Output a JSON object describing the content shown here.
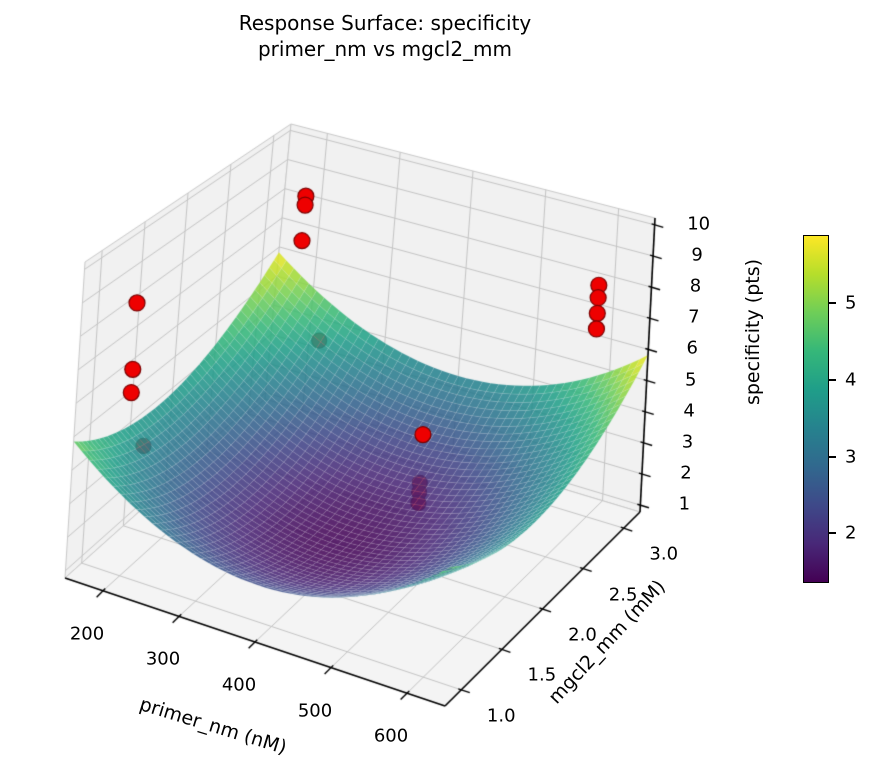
{
  "title": {
    "line1": "Response Surface: specificity",
    "line2": "primer_nm vs mgcl2_mm"
  },
  "chart_data": {
    "type": "surface3d",
    "title": "Response Surface: specificity\nprimer_nm vs mgcl2_mm",
    "xlabel": "primer_nm (nM)",
    "ylabel": "mgcl2_mm (mM)",
    "zlabel": "specificity (pts)",
    "xlim": [
      150,
      650
    ],
    "ylim": [
      0.8,
      3.2
    ],
    "zlim": [
      0.78,
      10.22
    ],
    "xticks": [
      "200",
      "300",
      "400",
      "500",
      "600"
    ],
    "xtick_values": [
      200,
      300,
      400,
      500,
      600
    ],
    "yticks": [
      "1.0",
      "1.5",
      "2.0",
      "2.5",
      "3.0"
    ],
    "ytick_values": [
      1.0,
      1.5,
      2.0,
      2.5,
      3.0
    ],
    "zticks": [
      "1",
      "2",
      "3",
      "4",
      "5",
      "6",
      "7",
      "8",
      "9",
      "10"
    ],
    "ztick_values": [
      1,
      2,
      3,
      4,
      5,
      6,
      7,
      8,
      9,
      10
    ],
    "grid": true,
    "surface": {
      "colormap": "viridis",
      "model": "z = zmin + A*(u-u0)^2 + Bv*(v-v0)^2  (u,v normalized over xlim/ylim)",
      "zmin": 1.4,
      "u0": 0.5,
      "v0": 0.42,
      "A": 9.6,
      "Bv": 6.0,
      "alpha": 0.87,
      "mesh_steps": 46
    },
    "colorbar": {
      "vmin": 1.35,
      "vmax": 5.89,
      "ticks": [
        "2",
        "3",
        "4",
        "5"
      ],
      "tick_values": [
        2,
        3,
        4,
        5
      ],
      "position": "right"
    },
    "points": [
      {
        "primer_nm": 200,
        "mgcl2_mm": 3.0,
        "specificity": 8.5,
        "occluded": false
      },
      {
        "primer_nm": 200,
        "mgcl2_mm": 3.0,
        "specificity": 8.2,
        "occluded": false
      },
      {
        "primer_nm": 200,
        "mgcl2_mm": 3.0,
        "specificity": 7.0,
        "occluded": false
      },
      {
        "primer_nm": 200,
        "mgcl2_mm": 1.0,
        "specificity": 9.0,
        "occluded": false
      },
      {
        "primer_nm": 200,
        "mgcl2_mm": 1.0,
        "specificity": 7.0,
        "occluded": false
      },
      {
        "primer_nm": 200,
        "mgcl2_mm": 1.0,
        "specificity": 6.3,
        "occluded": false
      },
      {
        "primer_nm": 600,
        "mgcl2_mm": 3.0,
        "specificity": 8.2,
        "occluded": false
      },
      {
        "primer_nm": 600,
        "mgcl2_mm": 3.0,
        "specificity": 7.8,
        "occluded": false
      },
      {
        "primer_nm": 600,
        "mgcl2_mm": 3.0,
        "specificity": 7.3,
        "occluded": false
      },
      {
        "primer_nm": 600,
        "mgcl2_mm": 3.0,
        "specificity": 6.8,
        "occluded": false
      },
      {
        "primer_nm": 420,
        "mgcl2_mm": 2.6,
        "specificity": 3.1,
        "occluded": false
      },
      {
        "primer_nm": 420,
        "mgcl2_mm": 2.6,
        "specificity": 1.55,
        "occluded": true
      },
      {
        "primer_nm": 420,
        "mgcl2_mm": 2.6,
        "specificity": 1.25,
        "occluded": true
      },
      {
        "primer_nm": 420,
        "mgcl2_mm": 2.6,
        "specificity": 0.9,
        "occluded": true
      },
      {
        "primer_nm": 275,
        "mgcl2_mm": 2.6,
        "specificity": 5.1,
        "occluded": true
      },
      {
        "primer_nm": 215,
        "mgcl2_mm": 1.05,
        "specificity": 4.7,
        "occluded": true
      }
    ],
    "point_color": "#ee0000",
    "point_edge_color": "#7a0000"
  },
  "colors": {
    "background": "#ffffff",
    "pane_wall": "#f1f1f1",
    "pane_floor": "#f4f4f4",
    "pane_edge": "#c9c9c9",
    "grid_line": "#c4c4c4",
    "axis_line": "#000000",
    "viridis_low": "#440154",
    "viridis_high": "#fde725"
  }
}
